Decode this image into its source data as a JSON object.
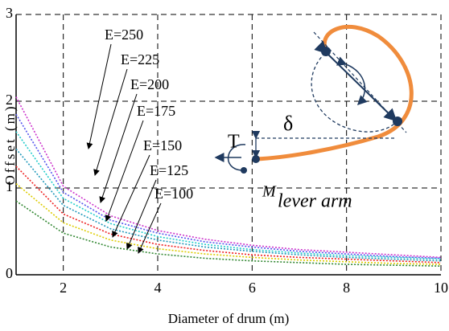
{
  "chart_data": {
    "type": "line",
    "x_label": "Diameter of drum (m)",
    "y_label": "Offset (m)",
    "x": [
      1,
      2,
      3,
      4,
      5,
      6,
      7,
      8,
      9,
      10
    ],
    "series": [
      {
        "name": "E=250",
        "color": "#cc33cc",
        "values": [
          2.05,
          1.02,
          0.68,
          0.51,
          0.41,
          0.34,
          0.29,
          0.26,
          0.23,
          0.2
        ]
      },
      {
        "name": "E=225",
        "color": "#5555ee",
        "values": [
          1.85,
          0.95,
          0.63,
          0.48,
          0.38,
          0.32,
          0.27,
          0.24,
          0.21,
          0.19
        ]
      },
      {
        "name": "E=200",
        "color": "#22cccc",
        "values": [
          1.65,
          0.88,
          0.59,
          0.44,
          0.35,
          0.29,
          0.25,
          0.22,
          0.2,
          0.18
        ]
      },
      {
        "name": "E=175",
        "color": "#2299bb",
        "values": [
          1.45,
          0.8,
          0.53,
          0.4,
          0.32,
          0.27,
          0.23,
          0.2,
          0.18,
          0.16
        ]
      },
      {
        "name": "E=150",
        "color": "#ee2222",
        "values": [
          1.25,
          0.7,
          0.47,
          0.35,
          0.28,
          0.23,
          0.2,
          0.18,
          0.16,
          0.14
        ]
      },
      {
        "name": "E=125",
        "color": "#ddcc00",
        "values": [
          1.05,
          0.6,
          0.4,
          0.3,
          0.24,
          0.2,
          0.17,
          0.15,
          0.13,
          0.12
        ]
      },
      {
        "name": "E=100",
        "color": "#338833",
        "values": [
          0.85,
          0.48,
          0.32,
          0.24,
          0.19,
          0.16,
          0.14,
          0.12,
          0.11,
          0.1
        ]
      }
    ],
    "xlim": [
      1,
      10
    ],
    "xticks": [
      2,
      4,
      6,
      8,
      10
    ],
    "ylim": [
      0,
      3
    ],
    "yticks": [
      0,
      1,
      2,
      3
    ],
    "grid": true,
    "annotations": {
      "delta": "δ",
      "torque": "T",
      "moment": "M",
      "lever": "lever arm"
    }
  }
}
